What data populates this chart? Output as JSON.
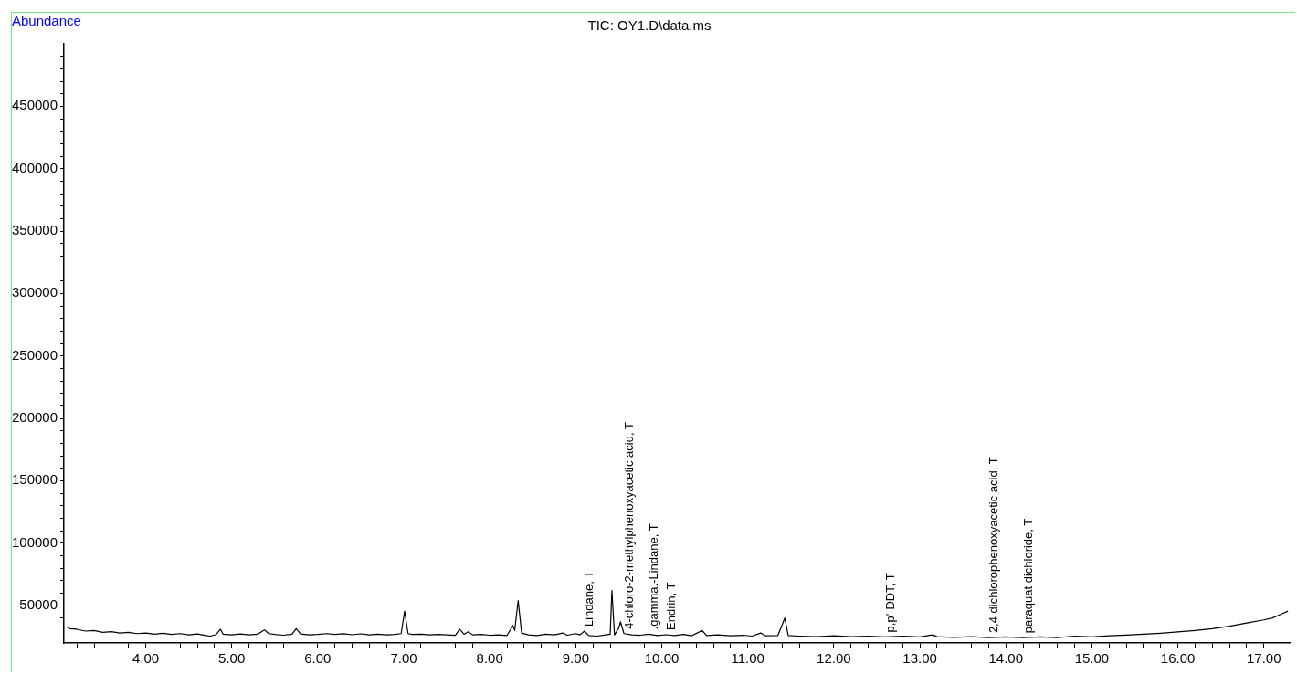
{
  "chart_data": {
    "type": "line",
    "title": "TIC: OY1.D\\data.ms",
    "ylabel": "Abundance",
    "x": [
      3.08,
      3.12,
      3.2,
      3.3,
      3.4,
      3.5,
      3.6,
      3.7,
      3.8,
      3.9,
      4.0,
      4.1,
      4.2,
      4.3,
      4.4,
      4.5,
      4.6,
      4.7,
      4.75,
      4.82,
      4.87,
      4.9,
      5.0,
      5.1,
      5.2,
      5.3,
      5.38,
      5.43,
      5.5,
      5.6,
      5.7,
      5.75,
      5.8,
      5.9,
      6.0,
      6.1,
      6.2,
      6.3,
      6.4,
      6.5,
      6.6,
      6.7,
      6.8,
      6.9,
      6.97,
      7.01,
      7.05,
      7.1,
      7.2,
      7.3,
      7.4,
      7.5,
      7.6,
      7.65,
      7.7,
      7.75,
      7.8,
      7.9,
      8.0,
      8.1,
      8.2,
      8.27,
      8.29,
      8.33,
      8.37,
      8.45,
      8.55,
      8.65,
      8.75,
      8.85,
      8.9,
      9.0,
      9.05,
      9.1,
      9.15,
      9.25,
      9.35,
      9.4,
      9.42,
      9.45,
      9.5,
      9.52,
      9.56,
      9.65,
      9.75,
      9.85,
      9.95,
      10.05,
      10.15,
      10.25,
      10.35,
      10.47,
      10.52,
      10.65,
      10.8,
      10.95,
      11.05,
      11.15,
      11.2,
      11.35,
      11.43,
      11.47,
      11.6,
      11.8,
      12.0,
      12.2,
      12.4,
      12.6,
      12.8,
      13.0,
      13.15,
      13.2,
      13.4,
      13.6,
      13.8,
      14.0,
      14.2,
      14.4,
      14.6,
      14.8,
      15.0,
      15.2,
      15.4,
      15.6,
      15.8,
      16.0,
      16.2,
      16.4,
      16.6,
      16.8,
      17.0,
      17.1,
      17.2,
      17.28
    ],
    "series": [
      {
        "color": "#000000",
        "values": [
          33000,
          31500,
          31000,
          29500,
          30000,
          28500,
          29000,
          28000,
          28500,
          27500,
          28000,
          27000,
          27800,
          26800,
          27500,
          26500,
          27200,
          26000,
          25500,
          26800,
          31000,
          27000,
          26500,
          27200,
          26500,
          27000,
          30500,
          27500,
          26800,
          26200,
          27000,
          31500,
          27200,
          26500,
          26800,
          27500,
          26800,
          27400,
          26600,
          27300,
          26500,
          27000,
          26500,
          26800,
          27500,
          45500,
          27500,
          26800,
          27000,
          26500,
          26800,
          26500,
          26200,
          31000,
          27000,
          29000,
          26500,
          26800,
          26200,
          26500,
          26000,
          34000,
          30000,
          54000,
          28000,
          26500,
          26000,
          27000,
          26500,
          28000,
          26200,
          27500,
          26500,
          29500,
          26000,
          25500,
          26500,
          27000,
          62000,
          26500,
          32000,
          37000,
          27500,
          26500,
          26200,
          27000,
          26000,
          26600,
          26000,
          26800,
          25800,
          30000,
          26000,
          26500,
          25800,
          26200,
          25500,
          28000,
          25800,
          26000,
          40000,
          26000,
          25500,
          25000,
          25800,
          25000,
          25500,
          24800,
          25500,
          24800,
          26500,
          25000,
          24500,
          25000,
          24300,
          24800,
          24200,
          24800,
          24300,
          25500,
          24800,
          25800,
          26300,
          27000,
          27800,
          28800,
          30000,
          31500,
          33500,
          36000,
          38500,
          40000,
          43000,
          45500
        ]
      }
    ],
    "xlim": [
      3.05,
      17.3
    ],
    "xticks": [
      {
        "value": 3.2,
        "label": null
      },
      {
        "value": 3.4,
        "label": null
      },
      {
        "value": 3.6,
        "label": null
      },
      {
        "value": 3.8,
        "label": null
      },
      {
        "value": 4,
        "label": "4.00"
      },
      {
        "value": 4.2,
        "label": null
      },
      {
        "value": 4.4,
        "label": null
      },
      {
        "value": 4.6,
        "label": null
      },
      {
        "value": 4.8,
        "label": null
      },
      {
        "value": 5,
        "label": "5.00"
      },
      {
        "value": 5.2,
        "label": null
      },
      {
        "value": 5.4,
        "label": null
      },
      {
        "value": 5.6,
        "label": null
      },
      {
        "value": 5.8,
        "label": null
      },
      {
        "value": 6,
        "label": "6.00"
      },
      {
        "value": 6.2,
        "label": null
      },
      {
        "value": 6.4,
        "label": null
      },
      {
        "value": 6.6,
        "label": null
      },
      {
        "value": 6.8,
        "label": null
      },
      {
        "value": 7,
        "label": "7.00"
      },
      {
        "value": 7.2,
        "label": null
      },
      {
        "value": 7.4,
        "label": null
      },
      {
        "value": 7.6,
        "label": null
      },
      {
        "value": 7.8,
        "label": null
      },
      {
        "value": 8,
        "label": "8.00"
      },
      {
        "value": 8.2,
        "label": null
      },
      {
        "value": 8.4,
        "label": null
      },
      {
        "value": 8.6,
        "label": null
      },
      {
        "value": 8.8,
        "label": null
      },
      {
        "value": 9,
        "label": "9.00"
      },
      {
        "value": 9.2,
        "label": null
      },
      {
        "value": 9.4,
        "label": null
      },
      {
        "value": 9.6,
        "label": null
      },
      {
        "value": 9.8,
        "label": null
      },
      {
        "value": 10,
        "label": "10.00"
      },
      {
        "value": 10.2,
        "label": null
      },
      {
        "value": 10.4,
        "label": null
      },
      {
        "value": 10.6,
        "label": null
      },
      {
        "value": 10.8,
        "label": null
      },
      {
        "value": 11,
        "label": "11.00"
      },
      {
        "value": 11.2,
        "label": null
      },
      {
        "value": 11.4,
        "label": null
      },
      {
        "value": 11.6,
        "label": null
      },
      {
        "value": 11.8,
        "label": null
      },
      {
        "value": 12,
        "label": "12.00"
      },
      {
        "value": 12.2,
        "label": null
      },
      {
        "value": 12.4,
        "label": null
      },
      {
        "value": 12.6,
        "label": null
      },
      {
        "value": 12.8,
        "label": null
      },
      {
        "value": 13,
        "label": "13.00"
      },
      {
        "value": 13.2,
        "label": null
      },
      {
        "value": 13.4,
        "label": null
      },
      {
        "value": 13.6,
        "label": null
      },
      {
        "value": 13.8,
        "label": null
      },
      {
        "value": 14,
        "label": "14.00"
      },
      {
        "value": 14.2,
        "label": null
      },
      {
        "value": 14.4,
        "label": null
      },
      {
        "value": 14.6,
        "label": null
      },
      {
        "value": 14.8,
        "label": null
      },
      {
        "value": 15,
        "label": "15.00"
      },
      {
        "value": 15.2,
        "label": null
      },
      {
        "value": 15.4,
        "label": null
      },
      {
        "value": 15.6,
        "label": null
      },
      {
        "value": 15.8,
        "label": null
      },
      {
        "value": 16,
        "label": "16.00"
      },
      {
        "value": 16.2,
        "label": null
      },
      {
        "value": 16.4,
        "label": null
      },
      {
        "value": 16.6,
        "label": null
      },
      {
        "value": 16.8,
        "label": null
      },
      {
        "value": 17,
        "label": "17.00"
      },
      {
        "value": 17.2,
        "label": null
      }
    ],
    "ylim": [
      20000,
      500000
    ],
    "yticks": [
      {
        "value": 40000,
        "label": null
      },
      50000,
      {
        "value": 60000,
        "label": null
      },
      {
        "value": 70000,
        "label": null
      },
      {
        "value": 80000,
        "label": null
      },
      {
        "value": 90000,
        "label": null
      },
      100000,
      {
        "value": 110000,
        "label": null
      },
      {
        "value": 120000,
        "label": null
      },
      {
        "value": 130000,
        "label": null
      },
      {
        "value": 140000,
        "label": null
      },
      150000,
      {
        "value": 160000,
        "label": null
      },
      {
        "value": 170000,
        "label": null
      },
      {
        "value": 180000,
        "label": null
      },
      {
        "value": 190000,
        "label": null
      },
      200000,
      {
        "value": 210000,
        "label": null
      },
      {
        "value": 220000,
        "label": null
      },
      {
        "value": 230000,
        "label": null
      },
      {
        "value": 240000,
        "label": null
      },
      250000,
      {
        "value": 260000,
        "label": null
      },
      {
        "value": 270000,
        "label": null
      },
      {
        "value": 280000,
        "label": null
      },
      {
        "value": 290000,
        "label": null
      },
      300000,
      {
        "value": 310000,
        "label": null
      },
      {
        "value": 320000,
        "label": null
      },
      {
        "value": 330000,
        "label": null
      },
      {
        "value": 340000,
        "label": null
      },
      350000,
      {
        "value": 360000,
        "label": null
      },
      {
        "value": 370000,
        "label": null
      },
      {
        "value": 380000,
        "label": null
      },
      {
        "value": 390000,
        "label": null
      },
      400000,
      {
        "value": 410000,
        "label": null
      },
      {
        "value": 420000,
        "label": null
      },
      {
        "value": 430000,
        "label": null
      },
      {
        "value": 440000,
        "label": null
      },
      450000,
      {
        "value": 460000,
        "label": null
      },
      {
        "value": 470000,
        "label": null
      },
      {
        "value": 480000,
        "label": null
      },
      {
        "value": 490000,
        "label": null
      }
    ],
    "annotations": [
      {
        "text": "Lindane, T",
        "x": 9.1,
        "y": 29500
      },
      {
        "text": "4-chloro-2-methylphenoxyacetic acid, T",
        "x": 9.56,
        "y": 27500
      },
      {
        "text": ".gamma.-Lindane, T",
        "x": 9.85,
        "y": 27000
      },
      {
        "text": "Endrin, T",
        "x": 10.05,
        "y": 26600
      },
      {
        "text": "p,p'-DDT, T",
        "x": 12.6,
        "y": 24800
      },
      {
        "text": "2,4 dichlorophenoxyacetic acid, T",
        "x": 13.8,
        "y": 24300
      },
      {
        "text": "paraquat dichloride, T",
        "x": 14.2,
        "y": 24200
      }
    ],
    "grid": false,
    "legend": false,
    "marker": "none",
    "line_style": "solid"
  }
}
